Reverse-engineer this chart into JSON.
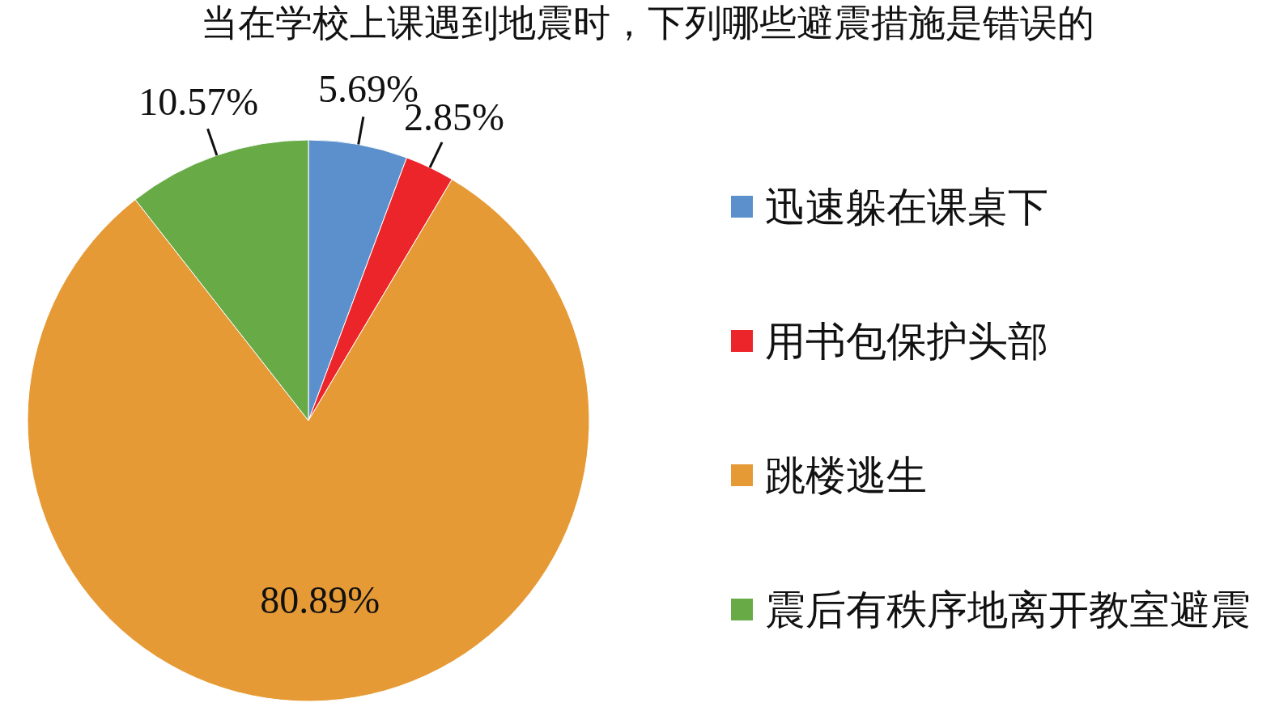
{
  "chart_data": {
    "type": "pie",
    "title": "当在学校上课遇到地震时，下列哪些避震措施是错误的",
    "categories": [
      "迅速躲在课桌下",
      "用书包保护头部",
      "跳楼逃生",
      "震后有秩序地离开教室避震"
    ],
    "values": [
      5.69,
      2.85,
      80.89,
      10.57
    ],
    "colors": [
      "#5b90cc",
      "#ec252b",
      "#e69a35",
      "#67aa46"
    ],
    "value_labels": [
      "5.69%",
      "2.85%",
      "80.89%",
      "10.57%"
    ],
    "legend": "right"
  }
}
